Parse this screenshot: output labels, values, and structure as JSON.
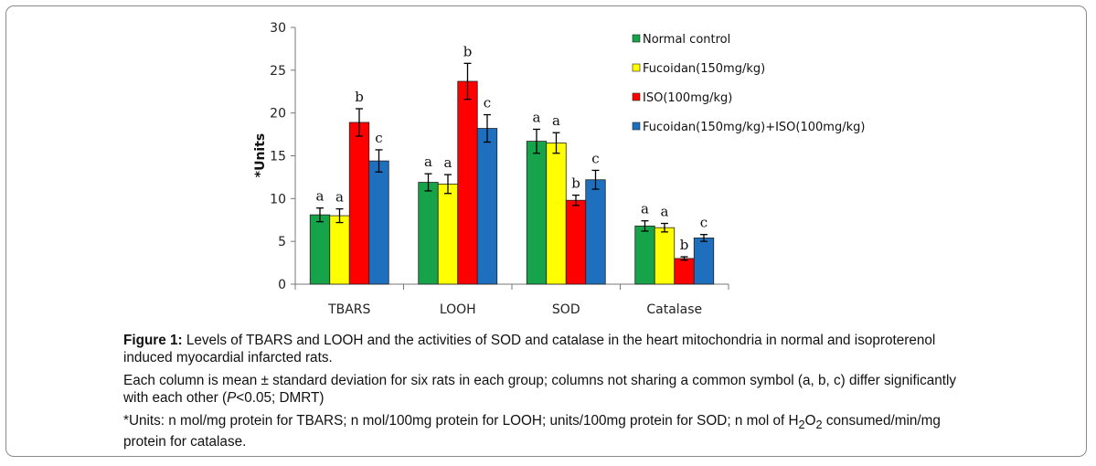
{
  "chart_data": {
    "type": "bar",
    "ylabel": "*Units",
    "ylim": [
      0,
      30
    ],
    "yticks": [
      "0",
      "5",
      "10",
      "15",
      "20",
      "25",
      "30"
    ],
    "grid": false,
    "legend_position": "top-right",
    "categories": [
      "TBARS",
      "LOOH",
      "SOD",
      "Catalase"
    ],
    "series": [
      {
        "name": "Normal control",
        "color": "#16a34a",
        "values": [
          8.1,
          11.9,
          16.7,
          6.8
        ],
        "errors": [
          0.8,
          1.0,
          1.4,
          0.6
        ],
        "labels": [
          "a",
          "a",
          "a",
          "a"
        ]
      },
      {
        "name": "Fucoidan(150mg/kg)",
        "color": "#ffff00",
        "values": [
          8.0,
          11.7,
          16.5,
          6.6
        ],
        "errors": [
          0.8,
          1.1,
          1.2,
          0.5
        ],
        "labels": [
          "a",
          "a",
          "a",
          "a"
        ]
      },
      {
        "name": "ISO(100mg/kg)",
        "color": "#ff0000",
        "values": [
          18.9,
          23.7,
          9.8,
          3.0
        ],
        "errors": [
          1.6,
          2.1,
          0.6,
          0.2
        ],
        "labels": [
          "b",
          "b",
          "b",
          "b"
        ]
      },
      {
        "name": "Fucoidan(150mg/kg)+ISO(100mg/kg)",
        "color": "#1f6fbf",
        "values": [
          14.4,
          18.2,
          12.2,
          5.4
        ],
        "errors": [
          1.3,
          1.6,
          1.1,
          0.4
        ],
        "labels": [
          "c",
          "c",
          "c",
          "c"
        ]
      }
    ]
  },
  "caption": {
    "fig_label": "Figure 1:",
    "fig_text": "Levels of TBARS and LOOH and the activities of SOD and catalase in the heart mitochondria in normal and isoproterenol induced myocardial infarcted rats.",
    "note1_a": "Each column is mean ± standard deviation for six rats in each group; columns not sharing a common symbol (a, b, c) differ significantly with each other (",
    "note1_p": "P",
    "note1_b": "<0.05; DMRT)",
    "note2_a": "*Units: n mol/mg protein for TBARS; n mol/100mg protein for LOOH; units/100mg protein for SOD; n mol of H",
    "note2_sub1": "2",
    "note2_mid": "O",
    "note2_sub2": "2",
    "note2_b": " consumed/min/mg protein for catalase."
  }
}
